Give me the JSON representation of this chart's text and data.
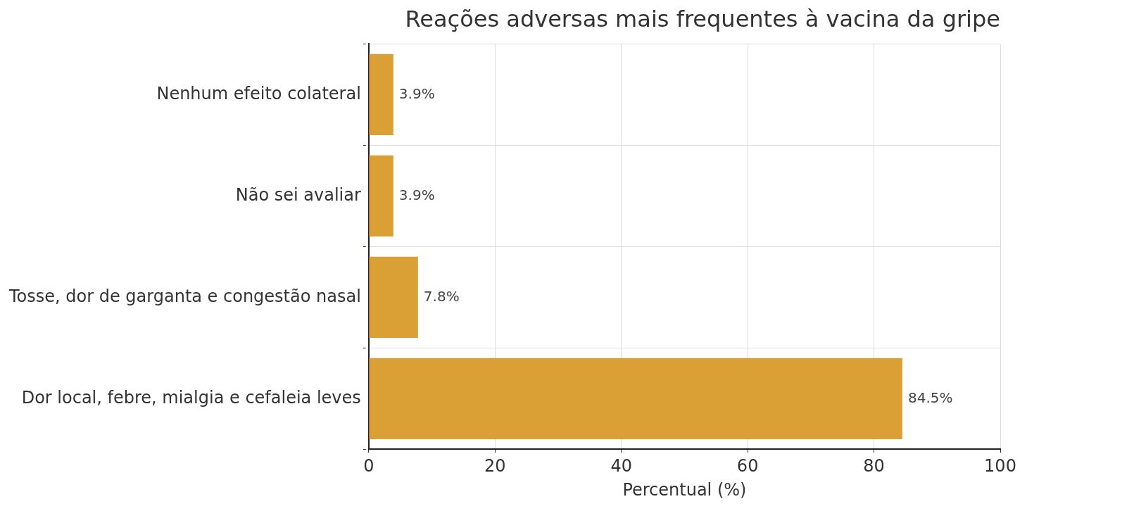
{
  "chart_data": {
    "type": "bar",
    "orientation": "horizontal",
    "title": "Reações adversas mais frequentes à vacina da gripe",
    "xlabel": "Percentual (%)",
    "categories": [
      "Nenhum efeito colateral",
      "Não sei avaliar",
      "Tosse, dor de garganta e congestão nasal",
      "Dor local, febre, mialgia e cefaleia leves"
    ],
    "values": [
      3.9,
      3.9,
      7.8,
      84.5
    ],
    "value_labels": [
      "3.9%",
      "3.9%",
      "7.8%",
      "84.5%"
    ],
    "color": "#daa036",
    "xlim": [
      0,
      100
    ],
    "xticks": [
      0,
      20,
      40,
      60,
      80,
      100
    ],
    "grid": true
  }
}
